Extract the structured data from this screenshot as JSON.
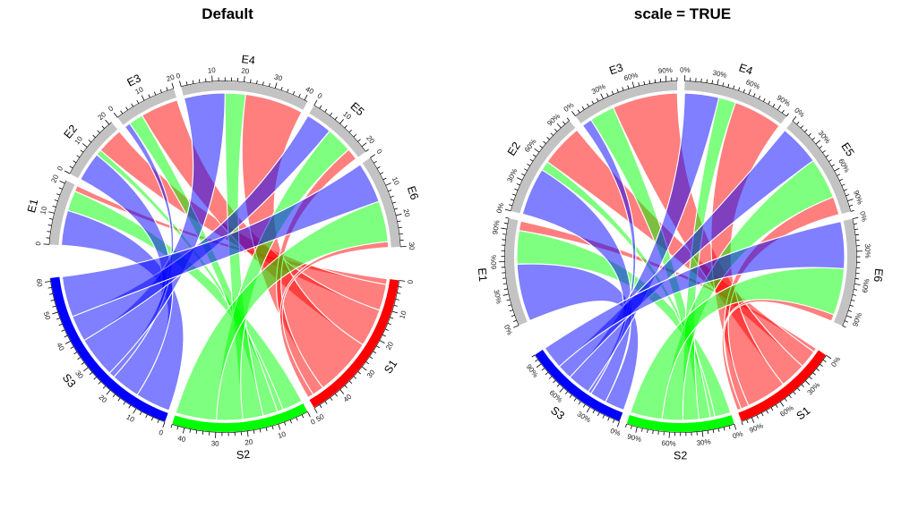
{
  "page": {
    "background": "#ffffff"
  },
  "chart_data": [
    {
      "type": "chord",
      "title": "Default",
      "scale": false,
      "rows": [
        "S1",
        "S2",
        "S3"
      ],
      "cols": [
        "E1",
        "E2",
        "E3",
        "E4",
        "E5",
        "E6"
      ],
      "matrix": [
        [
          2,
          9,
          13,
          20,
          4,
          2
        ],
        [
          7,
          2,
          5,
          7,
          9,
          14
        ],
        [
          12,
          10,
          2,
          14,
          9,
          14
        ]
      ],
      "row_totals": [
        50,
        44,
        61
      ],
      "col_totals": [
        21,
        21,
        20,
        41,
        22,
        30
      ],
      "colors": {
        "S1": "#FF0000",
        "S2": "#00FF00",
        "S3": "#0000FF",
        "E": "#C3C3C3"
      },
      "ribbon_opacity": 0.5,
      "start_degree": 176,
      "axis": {
        "major_every": 10,
        "minor_every": 2,
        "suffix": "",
        "example_labels": [
          "0",
          "10",
          "20",
          "30",
          "40",
          "50",
          "60"
        ]
      }
    },
    {
      "type": "chord",
      "title": "scale = TRUE",
      "scale": true,
      "rows": [
        "S1",
        "S2",
        "S3"
      ],
      "cols": [
        "E1",
        "E2",
        "E3",
        "E4",
        "E5",
        "E6"
      ],
      "matrix": [
        [
          2,
          9,
          13,
          20,
          4,
          2
        ],
        [
          7,
          2,
          5,
          7,
          9,
          14
        ],
        [
          12,
          10,
          2,
          14,
          9,
          14
        ]
      ],
      "row_totals": [
        50,
        44,
        61
      ],
      "col_totals": [
        21,
        21,
        20,
        41,
        22,
        30
      ],
      "colors": {
        "S1": "#FF0000",
        "S2": "#00FF00",
        "S3": "#0000FF",
        "E": "#C3C3C3"
      },
      "ribbon_opacity": 0.5,
      "start_degree": 203,
      "axis": {
        "major_every": 30,
        "minor_every": 5,
        "suffix": "%",
        "example_labels": [
          "0%",
          "30%",
          "60%",
          "90%"
        ]
      }
    }
  ]
}
